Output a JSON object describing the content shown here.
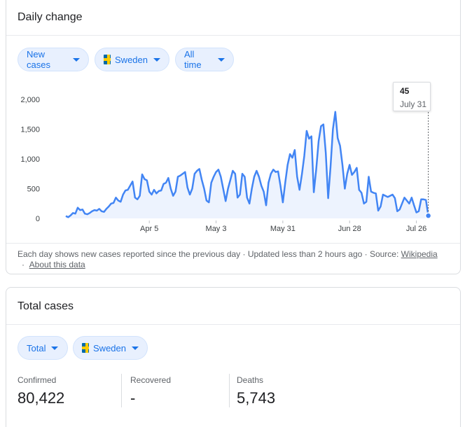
{
  "daily": {
    "title": "Daily change",
    "chips": {
      "metric": "New cases",
      "country": "Sweden",
      "range": "All time"
    },
    "tooltip": {
      "value": "45",
      "date": "July 31"
    },
    "footer": {
      "text": "Each day shows new cases reported since the previous day · Updated less than 2 hours ago · Source:",
      "source_link": "Wikipedia",
      "sep": "·",
      "about_link": "About this data"
    }
  },
  "total": {
    "title": "Total cases",
    "chips": {
      "metric": "Total",
      "country": "Sweden"
    },
    "stats": {
      "confirmed_label": "Confirmed",
      "confirmed_value": "80,422",
      "recovered_label": "Recovered",
      "recovered_value": "-",
      "deaths_label": "Deaths",
      "deaths_value": "5,743"
    }
  },
  "colors": {
    "line": "#4285f4",
    "area": "#e8f0fe",
    "chip_text": "#1a73e8"
  },
  "chart_data": {
    "type": "line",
    "ylim": [
      0,
      2000
    ],
    "y_ticks": [
      0,
      500,
      1000,
      1500,
      2000
    ],
    "y_tick_labels": [
      "0",
      "500",
      "1,000",
      "1,500",
      "2,000"
    ],
    "x_ticks": [
      {
        "day": 35,
        "label": "Apr 5"
      },
      {
        "day": 63,
        "label": "May 3"
      },
      {
        "day": 91,
        "label": "May 31"
      },
      {
        "day": 119,
        "label": "Jun 28"
      },
      {
        "day": 147,
        "label": "Jul 26"
      }
    ],
    "x_range": [
      0,
      153
    ],
    "series": [
      {
        "values": [
          40,
          20,
          50,
          90,
          80,
          180,
          140,
          150,
          80,
          70,
          90,
          120,
          140,
          130,
          160,
          120,
          110,
          160,
          200,
          250,
          260,
          350,
          300,
          280,
          400,
          470,
          480,
          550,
          620,
          350,
          320,
          380,
          740,
          660,
          640,
          450,
          400,
          480,
          420,
          460,
          470,
          580,
          600,
          680,
          500,
          380,
          450,
          700,
          720,
          750,
          780,
          520,
          400,
          500,
          750,
          800,
          830,
          650,
          500,
          300,
          270,
          600,
          700,
          780,
          820,
          700,
          500,
          290,
          500,
          650,
          800,
          750,
          350,
          400,
          750,
          700,
          350,
          250,
          500,
          700,
          800,
          700,
          550,
          450,
          220,
          600,
          750,
          820,
          780,
          790,
          550,
          270,
          600,
          900,
          1080,
          1020,
          1150,
          700,
          480,
          740,
          1050,
          1470,
          1340,
          1380,
          440,
          820,
          1300,
          1550,
          1580,
          1100,
          340,
          870,
          1500,
          1790,
          1350,
          1220,
          900,
          500,
          750,
          900,
          730,
          780,
          850,
          480,
          430,
          250,
          280,
          700,
          450,
          430,
          420,
          130,
          200,
          400,
          380,
          360,
          380,
          400,
          340,
          120,
          150,
          250,
          350,
          300,
          250,
          350,
          220,
          100,
          120,
          320,
          320,
          310,
          45
        ]
      }
    ]
  }
}
